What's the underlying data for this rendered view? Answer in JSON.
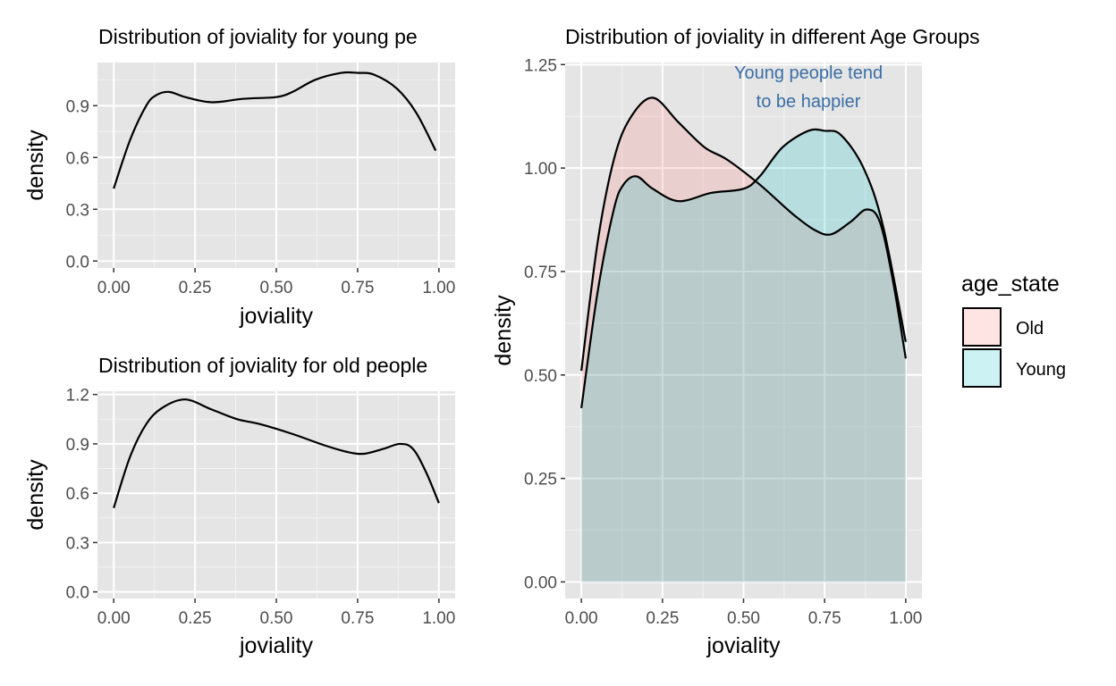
{
  "chart_data": [
    {
      "type": "line",
      "title": "Distribution of joviality for young pe",
      "xlabel": "joviality",
      "ylabel": "density",
      "xlim": [
        -0.05,
        1.05
      ],
      "ylim": [
        -0.04,
        1.15
      ],
      "xticks": [
        "0.00",
        "0.25",
        "0.50",
        "0.75",
        "1.00"
      ],
      "yticks": [
        "0.0",
        "0.3",
        "0.6",
        "0.9"
      ],
      "grid": true,
      "series": [
        {
          "x": [
            0.0,
            0.05,
            0.1,
            0.13,
            0.17,
            0.22,
            0.3,
            0.4,
            0.5,
            0.55,
            0.62,
            0.7,
            0.75,
            0.8,
            0.87,
            0.93,
            0.99
          ],
          "y": [
            0.42,
            0.7,
            0.9,
            0.96,
            0.98,
            0.95,
            0.92,
            0.94,
            0.95,
            0.98,
            1.05,
            1.09,
            1.09,
            1.08,
            1.0,
            0.86,
            0.64
          ]
        }
      ]
    },
    {
      "type": "line",
      "title": "Distribution of joviality for old people",
      "xlabel": "joviality",
      "ylabel": "density",
      "xlim": [
        -0.05,
        1.05
      ],
      "ylim": [
        -0.04,
        1.22
      ],
      "xticks": [
        "0.00",
        "0.25",
        "0.50",
        "0.75",
        "1.00"
      ],
      "yticks": [
        "0.0",
        "0.3",
        "0.6",
        "0.9",
        "1.2"
      ],
      "grid": true,
      "series": [
        {
          "x": [
            0.0,
            0.05,
            0.1,
            0.15,
            0.22,
            0.3,
            0.38,
            0.45,
            0.55,
            0.65,
            0.72,
            0.77,
            0.83,
            0.88,
            0.92,
            0.96,
            1.0
          ],
          "y": [
            0.51,
            0.82,
            1.02,
            1.12,
            1.17,
            1.11,
            1.05,
            1.02,
            0.96,
            0.89,
            0.85,
            0.84,
            0.87,
            0.9,
            0.87,
            0.73,
            0.54
          ]
        }
      ]
    },
    {
      "type": "area",
      "title": "Distribution of joviality in different Age Groups",
      "xlabel": "joviality",
      "ylabel": "density",
      "xlim": [
        -0.05,
        1.05
      ],
      "ylim": [
        -0.04,
        1.255
      ],
      "xticks": [
        "0.00",
        "0.25",
        "0.50",
        "0.75",
        "1.00"
      ],
      "yticks": [
        "0.00",
        "0.25",
        "0.50",
        "0.75",
        "1.00",
        "1.25"
      ],
      "grid": true,
      "legend": "right",
      "legend_title": "age_state",
      "annotation": [
        "Young people tend",
        "to be happier"
      ],
      "series": [
        {
          "name": "Old",
          "color": "#f8766d",
          "x": [
            0.0,
            0.05,
            0.1,
            0.15,
            0.22,
            0.3,
            0.38,
            0.45,
            0.55,
            0.65,
            0.72,
            0.77,
            0.83,
            0.88,
            0.92,
            0.96,
            1.0
          ],
          "y": [
            0.51,
            0.82,
            1.02,
            1.12,
            1.17,
            1.11,
            1.05,
            1.02,
            0.96,
            0.89,
            0.85,
            0.84,
            0.87,
            0.9,
            0.87,
            0.73,
            0.54
          ]
        },
        {
          "name": "Young",
          "color": "#00bfc4",
          "x": [
            0.0,
            0.05,
            0.1,
            0.13,
            0.17,
            0.22,
            0.3,
            0.4,
            0.5,
            0.55,
            0.62,
            0.7,
            0.75,
            0.8,
            0.87,
            0.93,
            1.0
          ],
          "y": [
            0.42,
            0.7,
            0.9,
            0.96,
            0.98,
            0.95,
            0.92,
            0.94,
            0.95,
            0.98,
            1.05,
            1.09,
            1.09,
            1.08,
            1.0,
            0.86,
            0.58
          ]
        }
      ]
    }
  ]
}
